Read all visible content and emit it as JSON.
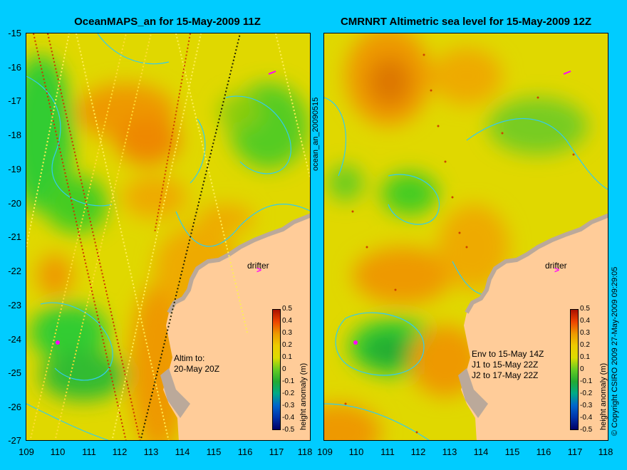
{
  "left_title": "OceanMAPS_an for 15-May-2009 11Z",
  "right_title": "CMRNRT Altimetric sea level  for 15-May-2009 12Z",
  "lat_ticks": [
    "-15",
    "-16",
    "-17",
    "-18",
    "-19",
    "-20",
    "-21",
    "-22",
    "-23",
    "-24",
    "-25",
    "-26",
    "-27"
  ],
  "lon_ticks": [
    "109",
    "110",
    "111",
    "112",
    "113",
    "114",
    "115",
    "116",
    "117",
    "118"
  ],
  "vertical_label": "ocean_an_20090515",
  "drifter_label": "drifter",
  "drifter_arrow": ">",
  "left_note": "Altim to:\n20-May 20Z",
  "right_note": "Env to 15-May 14Z\nJ1 to 15-May 22Z\nJ2 to 17-May 22Z",
  "colorbar": {
    "label": "height anomaly (m)",
    "ticks": [
      "0.5",
      "0.4",
      "0.3",
      "0.2",
      "0.1",
      "0",
      "-0.1",
      "-0.2",
      "-0.3",
      "-0.4",
      "-0.5"
    ],
    "range": [
      -0.5,
      0.5
    ]
  },
  "copyright": "© Copyright CSIRO 2009   27-May-2009 09:29:05",
  "colors": {
    "background": "#00ccff",
    "land": "#ffcc99",
    "coast": "#bba99a",
    "contour": "#33ccee",
    "field_yellow": "#e5e500",
    "field_green": "#33cc33",
    "field_orange": "#ee9900",
    "drifter": "#ff00ff"
  }
}
